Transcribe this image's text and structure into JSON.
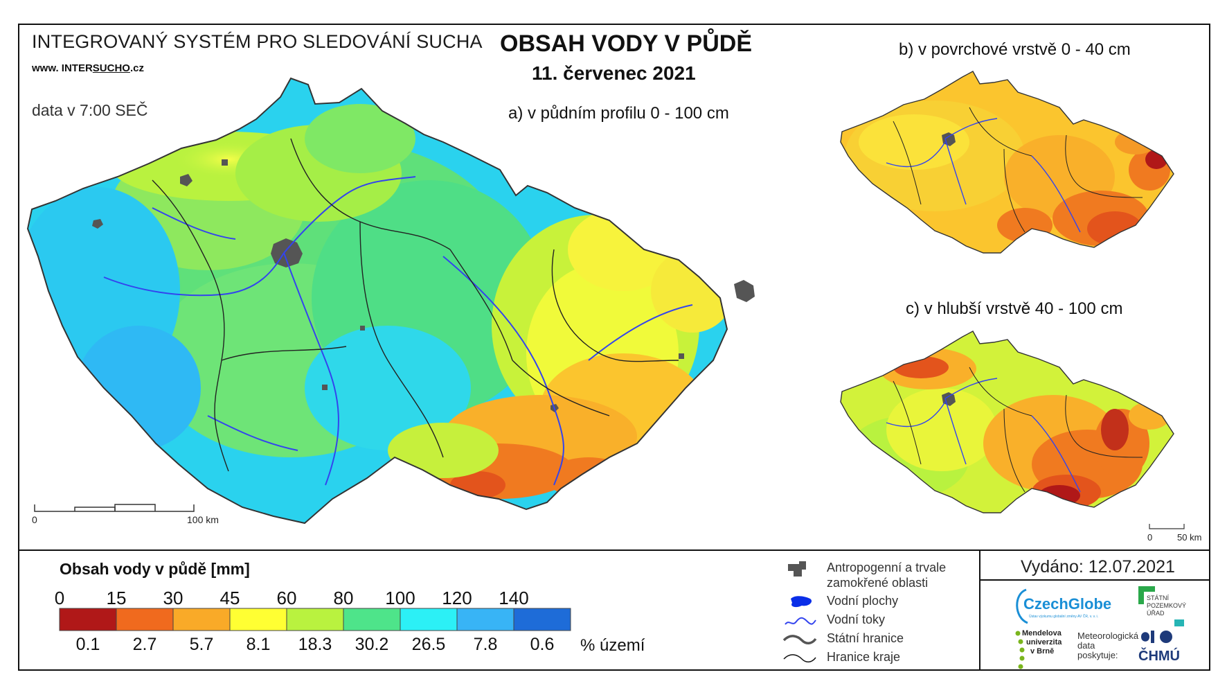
{
  "header": {
    "system_name": "INTEGROVANÝ SYSTÉM PRO SLEDOVÁNÍ SUCHA",
    "website_prefix": "www. INTER",
    "website_highlight": "SUCHO",
    "website_suffix": ".cz",
    "data_time": "data v 7:00 SEČ",
    "title": "OBSAH VODY V PŮDĚ",
    "date": "11. červenec 2021"
  },
  "maps": {
    "main": {
      "label": "a) v půdním profilu 0 - 100 cm",
      "scale_start": "0",
      "scale_end": "100 km"
    },
    "surface": {
      "label": "b) v povrchové vrstvě 0 - 40 cm"
    },
    "deep": {
      "label": "c) v hlubší vrstvě 40 - 100 cm",
      "scale_start": "0",
      "scale_end": "50 km"
    }
  },
  "legend": {
    "title": "Obsah vody v půdě  [mm]",
    "ticks": [
      "0",
      "15",
      "30",
      "45",
      "60",
      "80",
      "100",
      "120",
      "140"
    ],
    "colors": [
      "#b01818",
      "#f06a1e",
      "#f9aa28",
      "#ffff33",
      "#b9f23f",
      "#4ee48a",
      "#2cf0f6",
      "#38b4f6",
      "#1e6cd8"
    ],
    "percentages": [
      "0.1",
      "2.7",
      "5.7",
      "8.1",
      "18.3",
      "30.2",
      "26.5",
      "7.8",
      "0.6"
    ],
    "percent_unit": "% území"
  },
  "symbol_legend": {
    "items": [
      {
        "icon": "urban-area-icon",
        "label_line1": "Antropogenní a trvale",
        "label_line2": "zamokřené oblasti"
      },
      {
        "icon": "water-body-icon",
        "label_line1": "Vodní plochy",
        "label_line2": ""
      },
      {
        "icon": "river-icon",
        "label_line1": "Vodní toky",
        "label_line2": ""
      },
      {
        "icon": "state-border-icon",
        "label_line1": "Státní hranice",
        "label_line2": ""
      },
      {
        "icon": "region-border-icon",
        "label_line1": "Hranice kraje",
        "label_line2": ""
      }
    ]
  },
  "footer": {
    "issued": "Vydáno: 12.07.2021",
    "logos": {
      "czechglobe": "CzechGlobe",
      "czechglobe_sub": "Ústav výzkumu globální změny AV ČR, v. v. i.",
      "spu_line1": "STÁTNÍ",
      "spu_line2": "POZEMKOVÝ",
      "spu_line3": "ÚŘAD",
      "mendel_line1": "Mendelova",
      "mendel_line2": "univerzita",
      "mendel_line3": "v Brně",
      "meteo_line1": "Meteorologická",
      "meteo_line2": "data",
      "meteo_line3": "poskytuje:",
      "chmu": "ČHMÚ"
    }
  },
  "colors": {
    "frame": "#111111",
    "river": "#3344ee",
    "urban": "#555555"
  }
}
